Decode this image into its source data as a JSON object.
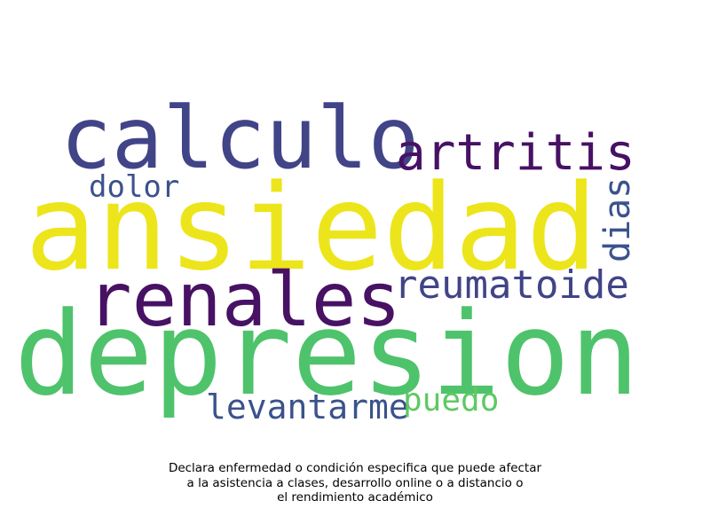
{
  "words": [
    {
      "text": "calculo",
      "color": "#414487"
    },
    {
      "text": "artritis",
      "color": "#471164"
    },
    {
      "text": "dolor",
      "color": "#3b528b"
    },
    {
      "text": "dias",
      "color": "#3b528b"
    },
    {
      "text": "ansiedad",
      "color": "#ede51b"
    },
    {
      "text": "renales",
      "color": "#471164"
    },
    {
      "text": "reumatoide",
      "color": "#414487"
    },
    {
      "text": "depresion",
      "color": "#4ec36b"
    },
    {
      "text": "levantarme",
      "color": "#3b528b"
    },
    {
      "text": "puedo",
      "color": "#5ec962"
    }
  ],
  "caption": {
    "line1": "Declara enfermedad o condición especifica que puede afectar",
    "line2": "a la asistencia a clases, desarrollo online o a distancio o",
    "line3": "el rendimiento académico"
  }
}
